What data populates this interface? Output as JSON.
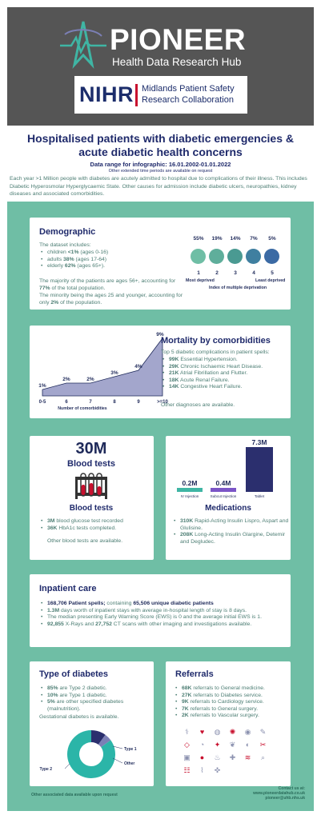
{
  "header": {
    "brand": "PIONEER",
    "brand_sub": "Health Data Research Hub",
    "partner_mark": "NIHR",
    "partner_name": "Midlands Patient Safety Research Collaboration"
  },
  "title": "Hospitalised patients with diabetic emergencies & acute diabetic health concerns",
  "date_range": "Data range for infographic: 16.01.2002-01.01.2022",
  "date_note": "Other extended time periods are available on request",
  "intro": "Each year >1 Million people with diabetes are acutely admitted to hospital due to complications of their illness. This includes Diabetic Hyperosmolar Hyperglycaemic State. Other causes for admission include diabetic ulcers, neuropathies, kidney diseases and associated comorbidities.",
  "demographic": {
    "heading": "Demographic",
    "includes": "The dataset includes:",
    "items": [
      {
        "label": "children ",
        "value": "<1%",
        "detail": " (ages 0-16)"
      },
      {
        "label": "adults ",
        "value": "38%",
        "detail": " (ages 17-64)"
      },
      {
        "label": "elderly ",
        "value": "62%",
        "detail": " (ages 65+)."
      }
    ],
    "note1_a": "The majority of the patients are ages 56+, accounting for ",
    "note1_b": "77%",
    "note1_c": " of the total population.",
    "note2_a": "The minority being the ages 25 and younger, accounting for only ",
    "note2_b": "2%",
    "note2_c": " of the population.",
    "deprivation": {
      "percents": [
        "55%",
        "19%",
        "14%",
        "7%",
        "5%"
      ],
      "ranks": [
        "1",
        "2",
        "3",
        "4",
        "5"
      ],
      "most": "Most deprived",
      "least": "Least deprived",
      "caption": "Index of multiple deprivation",
      "colors": [
        "#6fbea5",
        "#5fae9b",
        "#4a9a92",
        "#3f7fa0",
        "#3b6aa4"
      ]
    }
  },
  "mortality": {
    "heading": "Mortality by comorbidities",
    "intro": "Top 5 diabetic complications in patient spells:",
    "items": [
      {
        "value": "99K",
        "text": " Essential Hypertension."
      },
      {
        "value": "29K",
        "text": " Chronic Ischaemic Heart Disease."
      },
      {
        "value": "21K",
        "text": " Atrial Fibrillation and Flutter."
      },
      {
        "value": "18K",
        "text": " Acute Renal Failure."
      },
      {
        "value": "14K",
        "text": " Congestive Heart Failure."
      }
    ],
    "other": "Other diagnoses are available."
  },
  "chart_data": {
    "type": "area",
    "categories": [
      "0-5",
      "6",
      "7",
      "8",
      "9",
      ">=10"
    ],
    "values": [
      1,
      2,
      2,
      3,
      4,
      9
    ],
    "labels": [
      "1%",
      "2%",
      "2%",
      "3%",
      "4%",
      "9%"
    ],
    "xlabel": "Number of comorbidities",
    "ylabel": "",
    "ylim": [
      0,
      9
    ],
    "color": "#a3a6cc"
  },
  "blood": {
    "big": "30M",
    "big_label": "Blood tests",
    "heading": "Blood tests",
    "items": [
      {
        "value": "3M",
        "text": " blood glucose test recorded"
      },
      {
        "value": "36K",
        "text": " HbA1c tests completed."
      }
    ],
    "other": "Other blood tests are available."
  },
  "medications": {
    "heading": "Medications",
    "bars": [
      {
        "label": "IV Injection",
        "value": 0.2,
        "display": "0.2M",
        "color": "#3fb5a4"
      },
      {
        "label": "Subcut Injection",
        "value": 0.4,
        "display": "0.4M",
        "color": "#7b55c7"
      },
      {
        "label": "Tablet",
        "value": 7.3,
        "display": "7.3M",
        "color": "#2b2f6e"
      }
    ],
    "items": [
      {
        "value": "310K",
        "text": " Rapid-Acting Insulin Lispro, Aspart and Glulisine."
      },
      {
        "value": "208K",
        "text": " Long-Acting Insulin Glargine, Detemir and Degludec."
      }
    ]
  },
  "inpatient": {
    "heading": "Inpatient care",
    "items": [
      {
        "value": "168,706 Patient spells;",
        "text": " containing ",
        "value2": "65,506 unique diabetic patients",
        "text2": ""
      },
      {
        "value": "1.3M",
        "text": " days worth of inpatient stays with average in-hospital length of stay is 8 days.",
        "value2": "",
        "text2": ""
      },
      {
        "value": "",
        "text": "The median presenting Early Warning Score (EWS) is 0 and the average initial EWS is 1.",
        "value2": "",
        "text2": ""
      },
      {
        "value": "92,855",
        "text": " X-Rays and ",
        "value2": "27,752",
        "text2": " CT scans with other imaging and investigations available."
      }
    ]
  },
  "diabetes_type": {
    "heading": "Type of diabetes",
    "items": [
      {
        "value": "85%",
        "text": " are Type 2 diabetic."
      },
      {
        "value": "10%",
        "text": " are Type 1 diabetic."
      },
      {
        "value": "5%",
        "text": " are other specified diabetes (malnutrition)."
      }
    ],
    "gestational": "Gestational diabetes is available.",
    "donut": [
      {
        "label": "Type 2",
        "value": 85,
        "color": "#2bb5a8"
      },
      {
        "label": "Type 1",
        "value": 10,
        "color": "#2b2f6e"
      },
      {
        "label": "Other",
        "value": 5,
        "color": "#7b7fb5"
      }
    ]
  },
  "referrals": {
    "heading": "Referrals",
    "items": [
      {
        "value": "68K",
        "text": " referrals to General medicine."
      },
      {
        "value": "27K",
        "text": " referrals to Diabetes service."
      },
      {
        "value": "9K",
        "text": " referrals to Cardiology service."
      },
      {
        "value": "7K",
        "text": " referrals to General surgery."
      },
      {
        "value": "2K",
        "text": " referrals to Vascular surgery."
      }
    ],
    "icons": [
      "stethoscope-icon",
      "heart-icon",
      "kidney-icon",
      "brain-icon",
      "eye-icon",
      "syringe-icon",
      "tooth-icon",
      "ear-icon",
      "bone-icon",
      "lungs-icon",
      "pill-icon",
      "scalpel-icon",
      "xray-icon",
      "droplet-icon",
      "foot-icon",
      "ambulance-icon",
      "dna-icon",
      "microscope-icon",
      "clipboard-icon",
      "thermometer-icon",
      "bandage-icon"
    ],
    "glyphs": [
      "⚕",
      "♥",
      "◍",
      "✺",
      "◉",
      "✎",
      "◇",
      "◔",
      "✦",
      "❦",
      "◐",
      "✂",
      "▣",
      "●",
      "♨",
      "✚",
      "≋",
      "⌕",
      "☷",
      "⌇",
      "✜"
    ]
  },
  "footer": {
    "left": "Other associated data available upon request",
    "contact": "Contact us at:",
    "web": "www.pioneerdatahub.co.uk",
    "email": "pioneer@uhb.nhs.uk"
  }
}
